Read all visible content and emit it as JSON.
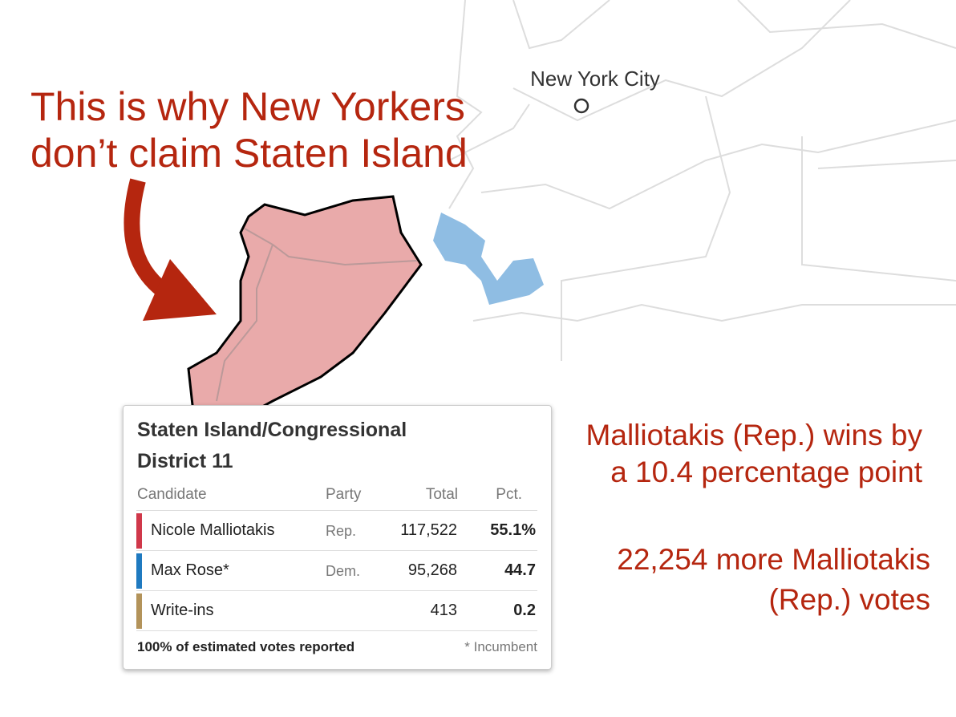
{
  "annotation": {
    "lines": [
      "This is why New Yorkers",
      "don’t claim Staten Island"
    ]
  },
  "map": {
    "city_label": "New York City"
  },
  "results": {
    "title_lines": [
      "Staten Island/Congressional",
      "District 11"
    ],
    "headers": [
      "Candidate",
      "Party",
      "Total",
      "Pct."
    ],
    "rows": [
      [
        "Nicole Malliotakis",
        "Rep.",
        "117,522",
        "55.1%"
      ],
      [
        "Max Rose*",
        "Dem.",
        "95,268",
        "44.7"
      ],
      [
        "Write-ins",
        "",
        "413",
        "0.2"
      ]
    ],
    "footer": "100% of estimated votes reported",
    "note": "* Incumbent"
  },
  "side_notes": [
    [
      "Malliotakis (Rep.) wins by",
      "a 10.4 percentage point"
    ],
    [
      "22,254 more Malliotakis",
      "(Rep.) votes"
    ]
  ]
}
